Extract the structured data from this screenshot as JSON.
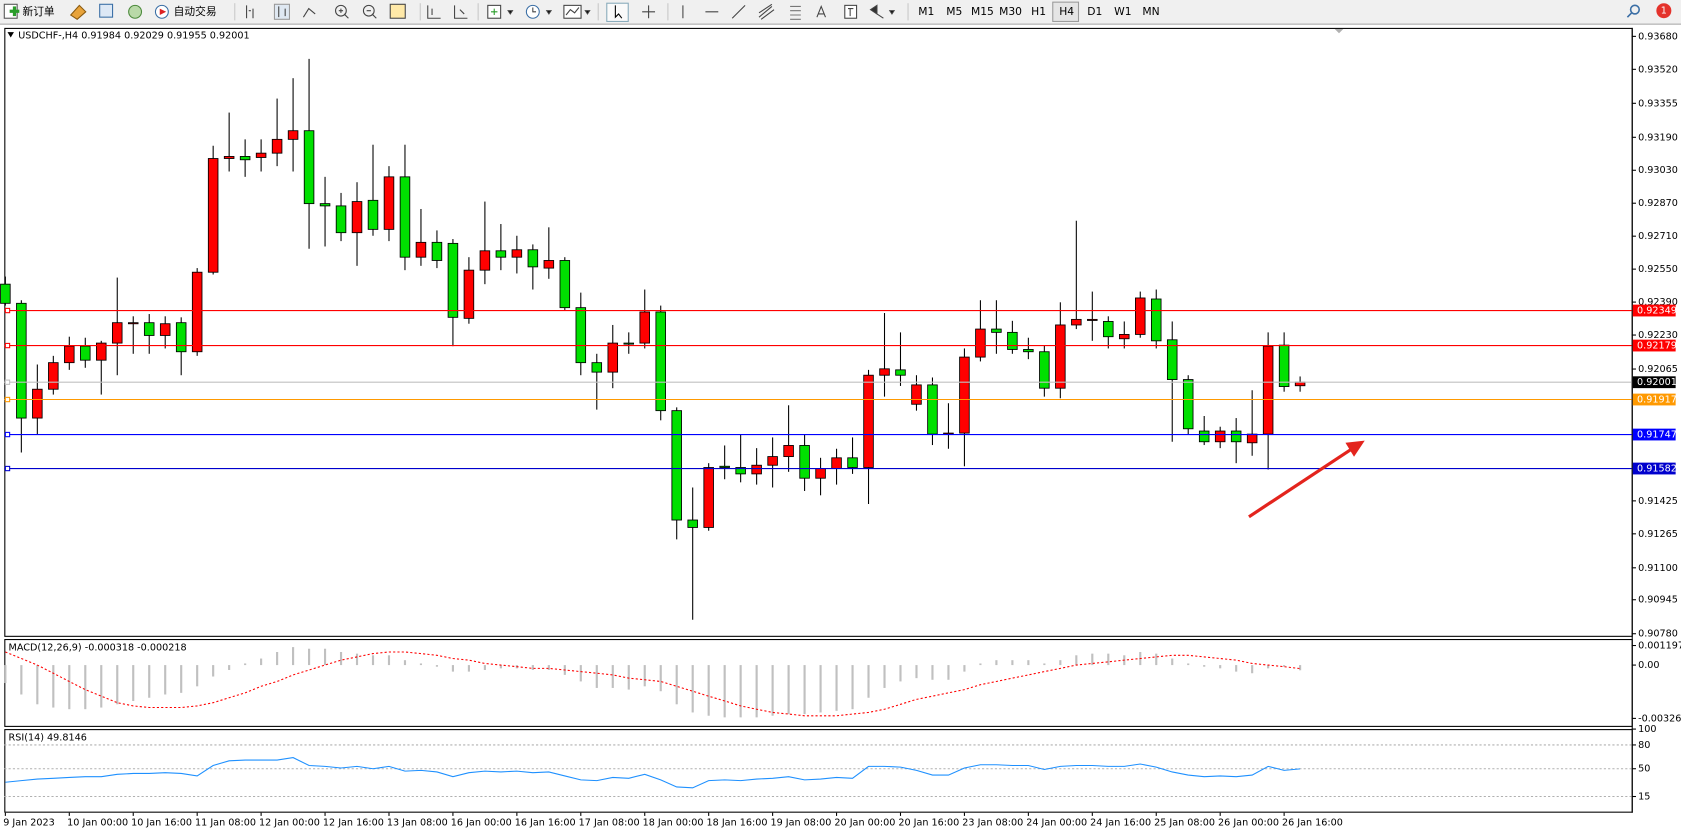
{
  "toolbar": {
    "new_order": "新订单",
    "auto_trading": "自动交易",
    "timeframes": [
      "M1",
      "M5",
      "M15",
      "M30",
      "H1",
      "H4",
      "D1",
      "W1",
      "MN"
    ],
    "notifications": "1"
  },
  "chart_data": [
    {
      "type": "candlestick",
      "title": "USDCHF-,H4  0.91984 0.92029 0.91955 0.92001",
      "categories": [
        "9 Jan 2023",
        null,
        null,
        null,
        "10 Jan 00:00",
        null,
        null,
        null,
        "10 Jan 16:00",
        null,
        null,
        null,
        "11 Jan 08:00",
        null,
        null,
        null,
        "12 Jan 00:00",
        null,
        null,
        null,
        "12 Jan 16:00",
        null,
        null,
        null,
        "13 Jan 08:00",
        null,
        null,
        null,
        "16 Jan 00:00",
        null,
        null,
        null,
        "16 Jan 16:00",
        null,
        null,
        null,
        "17 Jan 08:00",
        null,
        null,
        null,
        "18 Jan 00:00",
        null,
        null,
        null,
        "18 Jan 16:00",
        null,
        null,
        null,
        "19 Jan 08:00",
        null,
        null,
        null,
        "20 Jan 00:00",
        null,
        null,
        null,
        "20 Jan 16:00",
        null,
        null,
        null,
        "23 Jan 08:00",
        null,
        null,
        null,
        "24 Jan 00:00",
        null,
        null,
        null,
        "24 Jan 16:00",
        null,
        null,
        null,
        "25 Jan 08:00",
        null,
        null,
        null,
        "26 Jan 00:00",
        null,
        null,
        null,
        "26 Jan 16:00",
        null
      ],
      "open": [
        0.92477,
        0.92384,
        0.91827,
        0.91967,
        0.92096,
        0.92176,
        0.92108,
        0.92191,
        0.92285,
        0.9229,
        0.92228,
        0.9229,
        0.92149,
        0.92535,
        0.93087,
        0.93097,
        0.93092,
        0.93113,
        0.9318,
        0.93222,
        0.92868,
        0.92857,
        0.92727,
        0.92884,
        0.92743,
        0.92998,
        0.92608,
        0.9268,
        0.92675,
        0.92311,
        0.92545,
        0.92639,
        0.92608,
        0.92644,
        0.92555,
        0.92592,
        0.92363,
        0.92096,
        0.9205,
        0.92191,
        0.92191,
        0.92342,
        0.91863,
        0.91332,
        0.91296,
        0.91593,
        0.91587,
        0.91556,
        0.91598,
        0.9164,
        0.91694,
        0.91535,
        0.91582,
        0.91634,
        0.91587,
        0.92035,
        0.92061,
        0.91894,
        0.91988,
        0.91749,
        0.91754,
        0.92123,
        0.92259,
        0.92243,
        0.9216,
        0.92149,
        0.91972,
        0.92279,
        0.92301,
        0.92296,
        0.92212,
        0.92233,
        0.92405,
        0.92207,
        0.92014,
        0.91764,
        0.91712,
        0.91764,
        0.91707,
        0.91749,
        0.92181,
        0.91984
      ],
      "high": [
        0.92514,
        0.92399,
        0.92087,
        0.92129,
        0.92222,
        0.92217,
        0.92202,
        0.92509,
        0.92321,
        0.92332,
        0.92321,
        0.92316,
        0.92555,
        0.93149,
        0.9331,
        0.9318,
        0.9318,
        0.93378,
        0.93477,
        0.93571,
        0.92998,
        0.9292,
        0.92972,
        0.93154,
        0.9305,
        0.93154,
        0.92842,
        0.92738,
        0.92696,
        0.92608,
        0.92878,
        0.92769,
        0.92712,
        0.9267,
        0.92753,
        0.92608,
        0.92436,
        0.92139,
        0.92279,
        0.92243,
        0.92451,
        0.92373,
        0.91879,
        0.9149,
        0.91608,
        0.91694,
        0.91749,
        0.91681,
        0.91733,
        0.91889,
        0.91749,
        0.91634,
        0.91678,
        0.91733,
        0.92061,
        0.92337,
        0.92243,
        0.92035,
        0.92024,
        0.91899,
        0.92165,
        0.92399,
        0.92399,
        0.92299,
        0.92217,
        0.92181,
        0.92389,
        0.92785,
        0.92441,
        0.92321,
        0.92296,
        0.92441,
        0.92451,
        0.92296,
        0.92035,
        0.91837,
        0.91785,
        0.91827,
        0.91962,
        0.92243,
        0.92243,
        0.92029
      ],
      "low": [
        0.92373,
        0.9166,
        0.91749,
        0.91941,
        0.92061,
        0.92071,
        0.91941,
        0.92035,
        0.92139,
        0.92139,
        0.92165,
        0.92035,
        0.92129,
        0.92524,
        0.93024,
        0.92998,
        0.93024,
        0.9305,
        0.93024,
        0.92649,
        0.9266,
        0.92686,
        0.92566,
        0.92712,
        0.92686,
        0.92545,
        0.92566,
        0.92555,
        0.92176,
        0.92285,
        0.92477,
        0.92545,
        0.92529,
        0.92451,
        0.92503,
        0.92347,
        0.92035,
        0.91868,
        0.91972,
        0.92139,
        0.92165,
        0.91816,
        0.91238,
        0.90848,
        0.9128,
        0.9153,
        0.91515,
        0.91504,
        0.9149,
        0.91566,
        0.91473,
        0.91452,
        0.91504,
        0.91556,
        0.9141,
        0.91931,
        0.91983,
        0.91863,
        0.91696,
        0.91678,
        0.91593,
        0.92102,
        0.92139,
        0.92139,
        0.92113,
        0.91931,
        0.91923,
        0.92259,
        0.92202,
        0.92165,
        0.92165,
        0.92217,
        0.92165,
        0.91712,
        0.91749,
        0.91696,
        0.91681,
        0.91608,
        0.91644,
        0.91577,
        0.91955,
        0.91955
      ],
      "close": [
        0.92384,
        0.91827,
        0.91967,
        0.92096,
        0.92176,
        0.92108,
        0.92191,
        0.9229,
        0.9229,
        0.92228,
        0.92285,
        0.92149,
        0.92535,
        0.93087,
        0.93097,
        0.93081,
        0.93113,
        0.9318,
        0.93222,
        0.92868,
        0.92857,
        0.92727,
        0.92878,
        0.92743,
        0.92998,
        0.92608,
        0.9268,
        0.92592,
        0.92316,
        0.92545,
        0.92639,
        0.92608,
        0.92644,
        0.92561,
        0.92592,
        0.92363,
        0.92096,
        0.9205,
        0.92191,
        0.92186,
        0.92342,
        0.91863,
        0.91332,
        0.91296,
        0.91587,
        0.91587,
        0.91556,
        0.91598,
        0.9164,
        0.91694,
        0.91535,
        0.91582,
        0.91634,
        0.91587,
        0.92035,
        0.92066,
        0.92035,
        0.91988,
        0.91749,
        0.91754,
        0.92123,
        0.92259,
        0.92243,
        0.9216,
        0.92149,
        0.91972,
        0.92279,
        0.92306,
        0.92306,
        0.92222,
        0.92233,
        0.9241,
        0.92202,
        0.92014,
        0.91775,
        0.91712,
        0.91764,
        0.91712,
        0.91749,
        0.92176,
        0.9198,
        0.92001
      ],
      "up_color": "#ff0000",
      "down_color": "#00e000",
      "ylim": [
        0.9077,
        0.93716
      ],
      "yticks": [
        {
          "value": 0.9368,
          "label": "0.93680"
        },
        {
          "value": 0.9352,
          "label": "0.93520"
        },
        {
          "value": 0.93355,
          "label": "0.93355"
        },
        {
          "value": 0.9319,
          "label": "0.93190"
        },
        {
          "value": 0.9303,
          "label": "0.93030"
        },
        {
          "value": 0.9287,
          "label": "0.92870"
        },
        {
          "value": 0.9271,
          "label": "0.92710"
        },
        {
          "value": 0.9255,
          "label": "0.92550"
        },
        {
          "value": 0.9239,
          "label": "0.92390"
        },
        {
          "value": 0.9223,
          "label": "0.92230"
        },
        {
          "value": 0.92065,
          "label": "0.92065"
        },
        {
          "value": 0.91425,
          "label": "0.91425"
        },
        {
          "value": 0.91265,
          "label": "0.91265"
        },
        {
          "value": 0.911,
          "label": "0.91100"
        },
        {
          "value": 0.90945,
          "label": "0.90945"
        },
        {
          "value": 0.9078,
          "label": "0.90780"
        }
      ],
      "levels": [
        {
          "value": 0.92349,
          "color": "#ff0000"
        },
        {
          "value": 0.92179,
          "color": "#ff0000"
        },
        {
          "value": 0.91917,
          "color": "#ff9900"
        },
        {
          "value": 0.91747,
          "color": "#0000ff"
        },
        {
          "value": 0.91582,
          "color": "#0000cd"
        }
      ],
      "bid": 0.92001
    },
    {
      "type": "macd",
      "title": "MACD(12,26,9) -0.000318 -0.000218",
      "histogram": [
        -0.0011,
        -0.0018,
        -0.0024,
        -0.0026,
        -0.0027,
        -0.0027,
        -0.0026,
        -0.0024,
        -0.0022,
        -0.002,
        -0.0018,
        -0.0017,
        -0.0013,
        -0.0007,
        -0.0003,
        0.0001,
        0.0004,
        0.0008,
        0.0011,
        0.001,
        0.001,
        0.0008,
        0.0007,
        0.0006,
        0.0006,
        0.0003,
        0.0001,
        -0.0001,
        -0.0004,
        -0.0004,
        -0.0003,
        -0.0002,
        -0.0002,
        -0.0003,
        -0.0003,
        -0.0006,
        -0.001,
        -0.0014,
        -0.0014,
        -0.0015,
        -0.0013,
        -0.0016,
        -0.0024,
        -0.0029,
        -0.0031,
        -0.0032,
        -0.0032,
        -0.0032,
        -0.0031,
        -0.003,
        -0.003,
        -0.0029,
        -0.0028,
        -0.0027,
        -0.002,
        -0.0014,
        -0.001,
        -0.0008,
        -0.0009,
        -0.0009,
        -0.0004,
        0.0001,
        0.0003,
        0.0003,
        0.0003,
        0.0001,
        0.0003,
        0.0006,
        0.0007,
        0.0007,
        0.0006,
        0.0008,
        0.0007,
        0.0004,
        0.0001,
        -0.0001,
        -0.0002,
        -0.0004,
        -0.0005,
        -0.0002,
        -0.0001,
        -0.000318
      ],
      "signal": [
        0.0008,
        0.0004,
        0,
        -0.0005,
        -0.001,
        -0.0015,
        -0.0019,
        -0.0023,
        -0.0025,
        -0.0026,
        -0.0026,
        -0.0026,
        -0.0025,
        -0.0023,
        -0.002,
        -0.0017,
        -0.0013,
        -0.001,
        -0.0006,
        -0.0003,
        0,
        0.0003,
        0.0005,
        0.0007,
        0.0008,
        0.0008,
        0.0007,
        0.0006,
        0.0004,
        0.0003,
        0.0001,
        0,
        -0.0001,
        -0.0002,
        -0.0002,
        -0.0003,
        -0.0004,
        -0.0005,
        -0.0006,
        -0.0008,
        -0.0009,
        -0.001,
        -0.0013,
        -0.0016,
        -0.0019,
        -0.0022,
        -0.0025,
        -0.0027,
        -0.0029,
        -0.003,
        -0.0031,
        -0.0031,
        -0.0031,
        -0.003,
        -0.0029,
        -0.0027,
        -0.0024,
        -0.0021,
        -0.0019,
        -0.0017,
        -0.0015,
        -0.0012,
        -0.001,
        -0.0008,
        -0.0006,
        -0.0004,
        -0.0002,
        0,
        0.0001,
        0.0002,
        0.0003,
        0.0004,
        0.0005,
        0.0006,
        0.0006,
        0.0005,
        0.0004,
        0.0003,
        0.0001,
        0,
        -0.0001,
        -0.000218
      ],
      "histogram_color": "#c0c0c0",
      "signal_color": "#ff0000",
      "ylim": [
        -0.00372,
        0.00153
      ],
      "yticks": [
        0.001197,
        {
          "value": 0,
          "label": "0.00"
        },
        -0.003263
      ]
    },
    {
      "type": "line",
      "title": "RSI(14) 49.8146",
      "values": [
        33,
        35,
        37,
        38,
        39,
        40,
        40,
        43,
        44,
        44,
        45,
        44,
        41,
        54,
        60,
        61,
        61,
        61,
        64,
        54,
        53,
        51,
        53,
        50,
        53,
        47,
        48,
        46,
        40,
        45,
        47,
        46,
        47,
        45,
        46,
        41,
        36,
        35,
        39,
        38,
        43,
        36,
        27,
        26,
        35,
        36,
        35,
        37,
        38,
        40,
        36,
        37,
        39,
        38,
        53,
        53,
        52,
        48,
        42,
        42,
        51,
        55,
        55,
        54,
        54,
        49,
        53,
        54,
        54,
        53,
        53,
        56,
        52,
        46,
        42,
        40,
        41,
        40,
        42,
        53,
        48,
        49.8146
      ],
      "color": "#1e90ff",
      "ylim": [
        0,
        100
      ],
      "yticks": [
        100,
        80,
        50,
        15
      ]
    }
  ]
}
